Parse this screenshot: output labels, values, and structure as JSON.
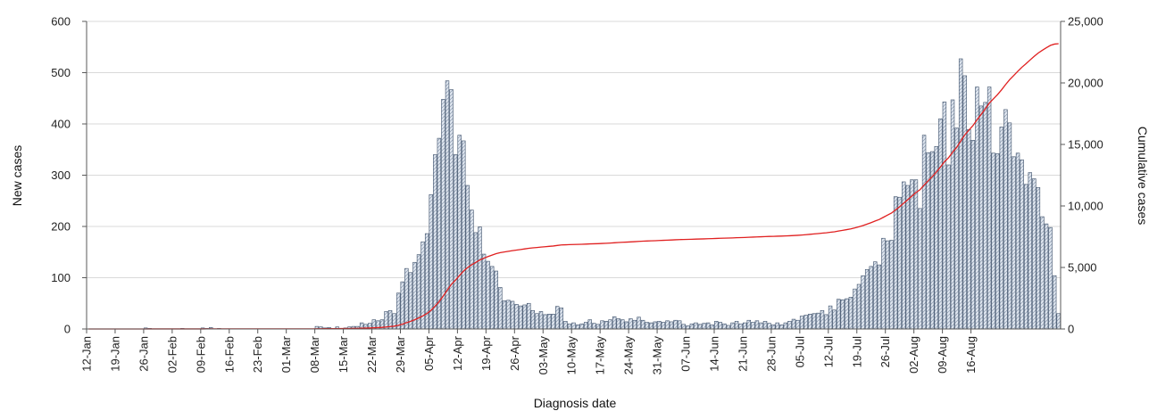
{
  "chart_data": {
    "type": "bar",
    "title": "",
    "xlabel": "Diagnosis date",
    "ylabel": "New cases",
    "y2label": "Cumulative cases",
    "ylim": [
      0,
      600
    ],
    "y2lim": [
      0,
      25000
    ],
    "yticks": [
      "0",
      "100",
      "200",
      "300",
      "400",
      "500",
      "600"
    ],
    "y2ticks": [
      "0",
      "5,000",
      "10,000",
      "15,000",
      "20,000",
      "25,000"
    ],
    "xticks": [
      "12-Jan",
      "19-Jan",
      "26-Jan",
      "02-Feb",
      "09-Feb",
      "16-Feb",
      "23-Feb",
      "01-Mar",
      "08-Mar",
      "15-Mar",
      "22-Mar",
      "29-Mar",
      "05-Apr",
      "12-Apr",
      "19-Apr",
      "26-Apr",
      "03-May",
      "10-May",
      "17-May",
      "24-May",
      "31-May",
      "07-Jun",
      "14-Jun",
      "21-Jun",
      "28-Jun",
      "05-Jul",
      "12-Jul",
      "19-Jul",
      "26-Jul",
      "02-Aug",
      "09-Aug",
      "16-Aug"
    ],
    "grid": "horizontal",
    "colors": {
      "bar_fill": "#dfe6ef",
      "bar_edge": "#3c4f69",
      "line": "#e02020",
      "grid": "#d9d9d9"
    },
    "series": [
      {
        "name": "New cases",
        "type": "bar",
        "values": [
          0,
          0,
          0,
          0,
          0,
          0,
          0,
          0,
          0,
          0,
          0,
          0,
          0,
          0,
          2,
          1,
          0,
          0,
          0,
          0,
          0,
          0,
          0,
          1,
          0,
          0,
          0,
          0,
          2,
          1,
          3,
          0,
          1,
          0,
          0,
          0,
          0,
          0,
          0,
          0,
          0,
          0,
          0,
          0,
          0,
          0,
          0,
          0,
          0,
          0,
          0,
          0,
          0,
          0,
          0,
          0,
          5,
          4,
          2,
          3,
          1,
          4,
          1,
          2,
          4,
          5,
          5,
          12,
          9,
          11,
          18,
          16,
          18,
          34,
          36,
          30,
          70,
          92,
          118,
          110,
          130,
          145,
          170,
          186,
          262,
          340,
          372,
          448,
          484,
          467,
          340,
          378,
          367,
          280,
          232,
          188,
          199,
          146,
          132,
          122,
          113,
          81,
          55,
          56,
          54,
          48,
          45,
          47,
          50,
          36,
          30,
          34,
          28,
          29,
          29,
          44,
          41,
          15,
          10,
          12,
          8,
          10,
          13,
          18,
          11,
          9,
          16,
          15,
          18,
          24,
          20,
          18,
          14,
          20,
          17,
          23,
          17,
          13,
          12,
          14,
          15,
          13,
          16,
          14,
          17,
          16,
          9,
          6,
          10,
          12,
          9,
          11,
          12,
          8,
          15,
          13,
          10,
          7,
          12,
          15,
          10,
          12,
          17,
          13,
          16,
          12,
          15,
          11,
          8,
          12,
          8,
          12,
          15,
          19,
          17,
          25,
          27,
          29,
          30,
          31,
          36,
          28,
          45,
          37,
          58,
          57,
          59,
          62,
          78,
          87,
          104,
          116,
          122,
          131,
          125,
          177,
          172,
          173,
          258,
          257,
          287,
          280,
          291,
          291,
          235,
          378,
          344,
          346,
          356,
          410,
          443,
          320,
          447,
          392,
          527,
          494,
          389,
          368,
          472,
          435,
          442,
          472,
          343,
          342,
          394,
          428,
          402,
          336,
          343,
          330,
          282,
          305,
          293,
          276,
          219,
          205,
          198,
          104,
          30
        ]
      },
      {
        "name": "Cumulative cases",
        "type": "line",
        "values": [
          0,
          0,
          0,
          0,
          0,
          0,
          0,
          0,
          0,
          0,
          0,
          0,
          0,
          0,
          2,
          3,
          3,
          3,
          3,
          3,
          3,
          3,
          3,
          4,
          4,
          4,
          4,
          4,
          6,
          7,
          10,
          10,
          11,
          11,
          11,
          11,
          11,
          11,
          11,
          11,
          11,
          11,
          11,
          11,
          11,
          11,
          11,
          11,
          11,
          11,
          11,
          11,
          11,
          11,
          11,
          11,
          16,
          20,
          22,
          25,
          26,
          30,
          31,
          33,
          37,
          42,
          47,
          59,
          68,
          79,
          97,
          113,
          131,
          165,
          201,
          231,
          301,
          393,
          511,
          621,
          751,
          896,
          1066,
          1252,
          1514,
          1854,
          2226,
          2674,
          3158,
          3625,
          3965,
          4343,
          4710,
          4990,
          5222,
          5410,
          5609,
          5755,
          5887,
          6009,
          6122,
          6203,
          6258,
          6314,
          6368,
          6416,
          6461,
          6508,
          6558,
          6594,
          6624,
          6658,
          6686,
          6715,
          6744,
          6788,
          6829,
          6844,
          6854,
          6866,
          6874,
          6884,
          6897,
          6915,
          6926,
          6935,
          6951,
          6966,
          6984,
          7008,
          7028,
          7046,
          7060,
          7080,
          7097,
          7120,
          7137,
          7150,
          7162,
          7176,
          7191,
          7204,
          7220,
          7234,
          7251,
          7267,
          7276,
          7282,
          7292,
          7304,
          7313,
          7324,
          7336,
          7344,
          7359,
          7372,
          7382,
          7389,
          7401,
          7416,
          7426,
          7438,
          7455,
          7468,
          7484,
          7496,
          7511,
          7522,
          7530,
          7542,
          7550,
          7562,
          7577,
          7596,
          7613,
          7638,
          7665,
          7694,
          7724,
          7755,
          7791,
          7819,
          7864,
          7901,
          7959,
          8016,
          8075,
          8137,
          8215,
          8302,
          8406,
          8522,
          8644,
          8775,
          8900,
          9077,
          9249,
          9422,
          9680,
          9937,
          10224,
          10504,
          10795,
          11086,
          11321,
          11699,
          12043,
          12389,
          12745,
          13155,
          13598,
          13918,
          14365,
          14757,
          15284,
          15778,
          16167,
          16535,
          17007,
          17442,
          17884,
          18356,
          18699,
          19041,
          19435,
          19863,
          20265,
          20601,
          20944,
          21274,
          21556,
          21861,
          22154,
          22430,
          22649,
          22854,
          23052,
          23156,
          23186
        ]
      }
    ]
  }
}
